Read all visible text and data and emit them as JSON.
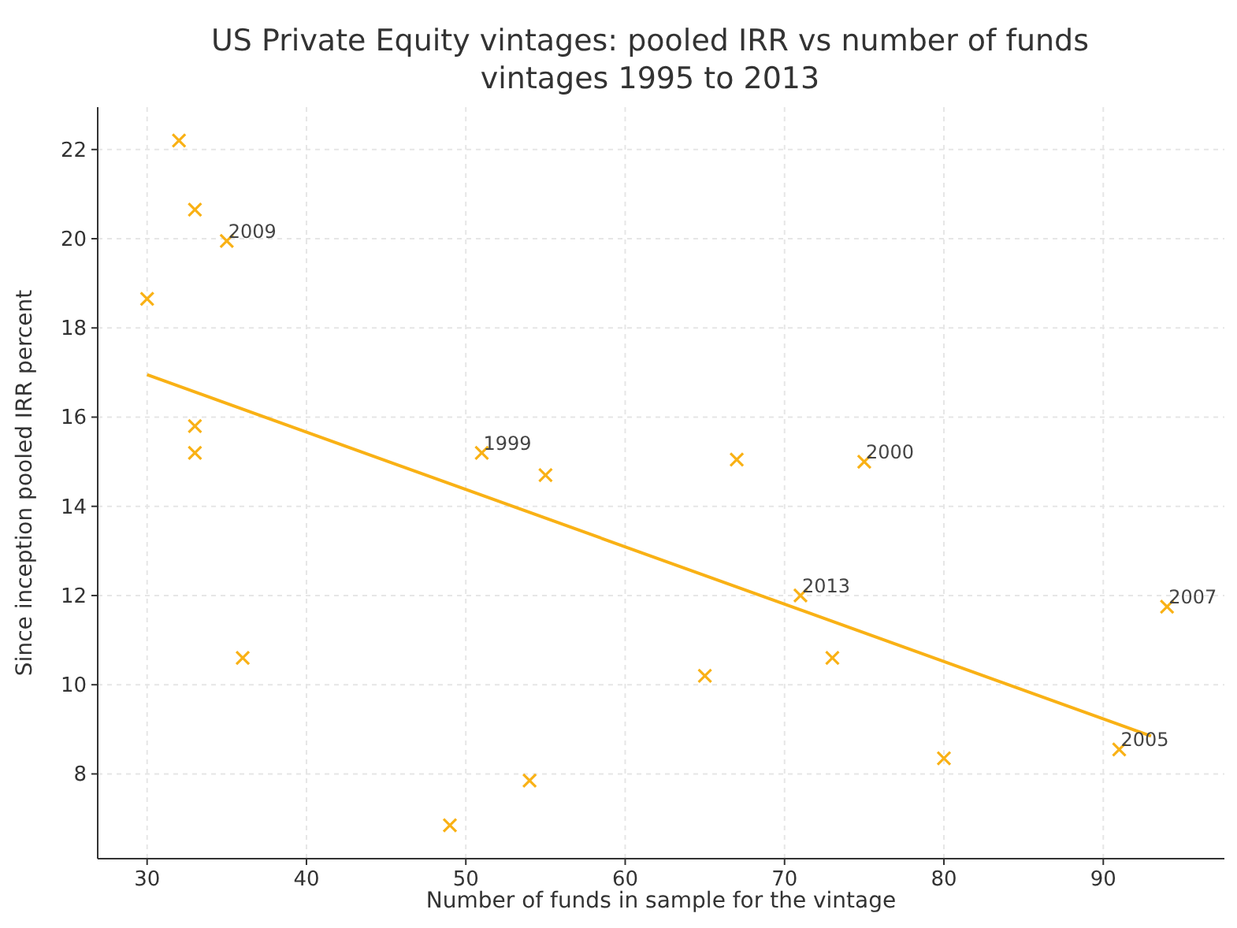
{
  "chart_data": {
    "type": "scatter",
    "title": "US Private Equity vintages: pooled IRR vs number of funds",
    "subtitle": "vintages 1995 to 2013",
    "xlabel": "Number of funds in sample for the vintage",
    "ylabel": "Since inception pooled IRR percent",
    "xlim": [
      26.9,
      97.6
    ],
    "xticks": [
      30,
      40,
      50,
      60,
      70,
      80,
      90
    ],
    "ylim": [
      6.1,
      22.95
    ],
    "yticks": [
      8,
      10,
      12,
      14,
      16,
      18,
      20,
      22
    ],
    "grid": true,
    "marker": "cross",
    "series": [
      {
        "color": "#f9b115",
        "x": [
          32,
          33,
          35,
          30,
          33,
          33,
          36,
          49,
          51,
          55,
          54,
          65,
          67,
          73,
          75,
          71,
          80,
          91,
          94
        ],
        "values": [
          22.2,
          20.65,
          19.95,
          18.65,
          15.8,
          15.2,
          10.6,
          6.85,
          15.2,
          14.7,
          7.85,
          10.2,
          15.05,
          10.6,
          15.0,
          12.0,
          8.35,
          8.55,
          11.75
        ]
      },
      {
        "type": "line",
        "color": "#f9b115",
        "marker": "none",
        "x": [
          30,
          93
        ],
        "values": [
          16.95,
          8.85
        ]
      }
    ],
    "annotations": [
      {
        "text": "2009",
        "x": 35,
        "y": 19.95
      },
      {
        "text": "1999",
        "x": 51,
        "y": 15.2
      },
      {
        "text": "2000",
        "x": 75,
        "y": 15.0
      },
      {
        "text": "2013",
        "x": 71,
        "y": 12.0
      },
      {
        "text": "2005",
        "x": 91,
        "y": 8.55
      },
      {
        "text": "2007",
        "x": 94,
        "y": 11.75
      }
    ]
  }
}
